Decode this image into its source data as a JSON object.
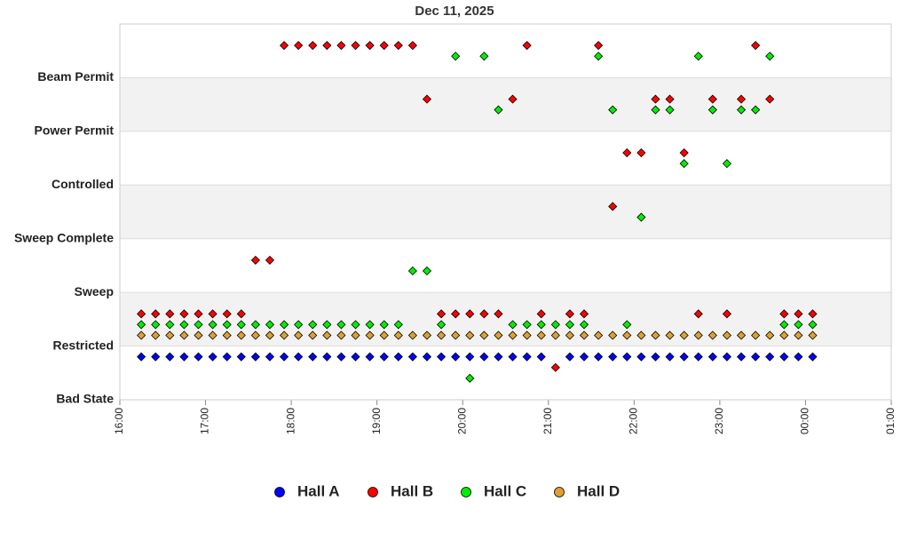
{
  "chart_data": {
    "type": "scatter",
    "title": "Dec 11, 2025",
    "xlim": [
      0,
      540
    ],
    "xticks": [
      {
        "value": 0,
        "label": "16:00"
      },
      {
        "value": 60,
        "label": "17:00"
      },
      {
        "value": 120,
        "label": "18:00"
      },
      {
        "value": 180,
        "label": "19:00"
      },
      {
        "value": 240,
        "label": "20:00"
      },
      {
        "value": 300,
        "label": "21:00"
      },
      {
        "value": 360,
        "label": "22:00"
      },
      {
        "value": 420,
        "label": "23:00"
      },
      {
        "value": 480,
        "label": "00:00"
      },
      {
        "value": 540,
        "label": "01:00"
      }
    ],
    "ylim": [
      0,
      7
    ],
    "yticks": [
      {
        "value": 0,
        "label": "Bad State"
      },
      {
        "value": 1,
        "label": "Restricted"
      },
      {
        "value": 2,
        "label": "Sweep"
      },
      {
        "value": 3,
        "label": "Sweep Complete"
      },
      {
        "value": 4,
        "label": "Controlled"
      },
      {
        "value": 5,
        "label": "Power Permit"
      },
      {
        "value": 6,
        "label": "Beam Permit"
      }
    ],
    "grid": true,
    "legend": "bottom",
    "series": [
      {
        "name": "Hall A",
        "color": "#0000ff",
        "x": [
          15,
          25,
          35,
          45,
          55,
          65,
          75,
          85,
          95,
          105,
          115,
          125,
          135,
          145,
          155,
          165,
          175,
          185,
          195,
          205,
          215,
          225,
          235,
          245,
          255,
          265,
          275,
          285,
          295,
          315,
          325,
          335,
          345,
          355,
          365,
          375,
          385,
          395,
          405,
          415,
          425,
          435,
          445,
          455,
          465,
          475,
          485
        ],
        "values": [
          0.8,
          0.8,
          0.8,
          0.8,
          0.8,
          0.8,
          0.8,
          0.8,
          0.8,
          0.8,
          0.8,
          0.8,
          0.8,
          0.8,
          0.8,
          0.8,
          0.8,
          0.8,
          0.8,
          0.8,
          0.8,
          0.8,
          0.8,
          0.8,
          0.8,
          0.8,
          0.8,
          0.8,
          0.8,
          0.8,
          0.8,
          0.8,
          0.8,
          0.8,
          0.8,
          0.8,
          0.8,
          0.8,
          0.8,
          0.8,
          0.8,
          0.8,
          0.8,
          0.8,
          0.8,
          0.8,
          0.8
        ]
      },
      {
        "name": "Hall B",
        "color": "#ff0000",
        "x": [
          15,
          25,
          35,
          45,
          55,
          65,
          75,
          85,
          95,
          105,
          115,
          125,
          135,
          145,
          155,
          165,
          175,
          185,
          195,
          205,
          215,
          225,
          235,
          245,
          255,
          265,
          275,
          285,
          295,
          305,
          315,
          325,
          335,
          345,
          355,
          365,
          375,
          385,
          395,
          405,
          415,
          425,
          435,
          445,
          455,
          465,
          475,
          485
        ],
        "values": [
          1.6,
          1.6,
          1.6,
          1.6,
          1.6,
          1.6,
          1.6,
          1.6,
          2.6,
          2.6,
          6.6,
          6.6,
          6.6,
          6.6,
          6.6,
          6.6,
          6.6,
          6.6,
          6.6,
          6.6,
          5.6,
          1.6,
          1.6,
          1.6,
          1.6,
          1.6,
          5.6,
          6.6,
          1.6,
          0.6,
          1.6,
          1.6,
          6.6,
          3.6,
          4.6,
          4.6,
          5.6,
          5.6,
          4.6,
          1.6,
          5.6,
          1.6,
          5.6,
          6.6,
          5.6,
          1.6,
          1.6,
          1.6
        ]
      },
      {
        "name": "Hall C",
        "color": "#00ee00",
        "x": [
          15,
          25,
          35,
          45,
          55,
          65,
          75,
          85,
          95,
          105,
          115,
          125,
          135,
          145,
          155,
          165,
          175,
          185,
          195,
          205,
          215,
          225,
          235,
          245,
          255,
          265,
          275,
          285,
          295,
          305,
          315,
          325,
          335,
          345,
          355,
          365,
          375,
          385,
          395,
          405,
          415,
          425,
          435,
          445,
          455,
          465,
          475,
          485
        ],
        "values": [
          1.4,
          1.4,
          1.4,
          1.4,
          1.4,
          1.4,
          1.4,
          1.4,
          1.4,
          1.4,
          1.4,
          1.4,
          1.4,
          1.4,
          1.4,
          1.4,
          1.4,
          1.4,
          1.4,
          2.4,
          2.4,
          1.4,
          6.4,
          0.4,
          6.4,
          5.4,
          1.4,
          1.4,
          1.4,
          1.4,
          1.4,
          1.4,
          6.4,
          5.4,
          1.4,
          3.4,
          5.4,
          5.4,
          4.4,
          6.4,
          5.4,
          4.4,
          5.4,
          5.4,
          6.4,
          1.4,
          1.4,
          1.4
        ]
      },
      {
        "name": "Hall D",
        "color": "#e0a030",
        "x": [
          15,
          25,
          35,
          45,
          55,
          65,
          75,
          85,
          95,
          105,
          115,
          125,
          135,
          145,
          155,
          165,
          175,
          185,
          195,
          205,
          215,
          225,
          235,
          245,
          255,
          265,
          275,
          285,
          295,
          305,
          315,
          325,
          335,
          345,
          355,
          365,
          375,
          385,
          395,
          405,
          415,
          425,
          435,
          445,
          455,
          465,
          475,
          485
        ],
        "values": [
          1.2,
          1.2,
          1.2,
          1.2,
          1.2,
          1.2,
          1.2,
          1.2,
          1.2,
          1.2,
          1.2,
          1.2,
          1.2,
          1.2,
          1.2,
          1.2,
          1.2,
          1.2,
          1.2,
          1.2,
          1.2,
          1.2,
          1.2,
          1.2,
          1.2,
          1.2,
          1.2,
          1.2,
          1.2,
          1.2,
          1.2,
          1.2,
          1.2,
          1.2,
          1.2,
          1.2,
          1.2,
          1.2,
          1.2,
          1.2,
          1.2,
          1.2,
          1.2,
          1.2,
          1.2,
          1.2,
          1.2,
          1.2
        ]
      }
    ]
  }
}
